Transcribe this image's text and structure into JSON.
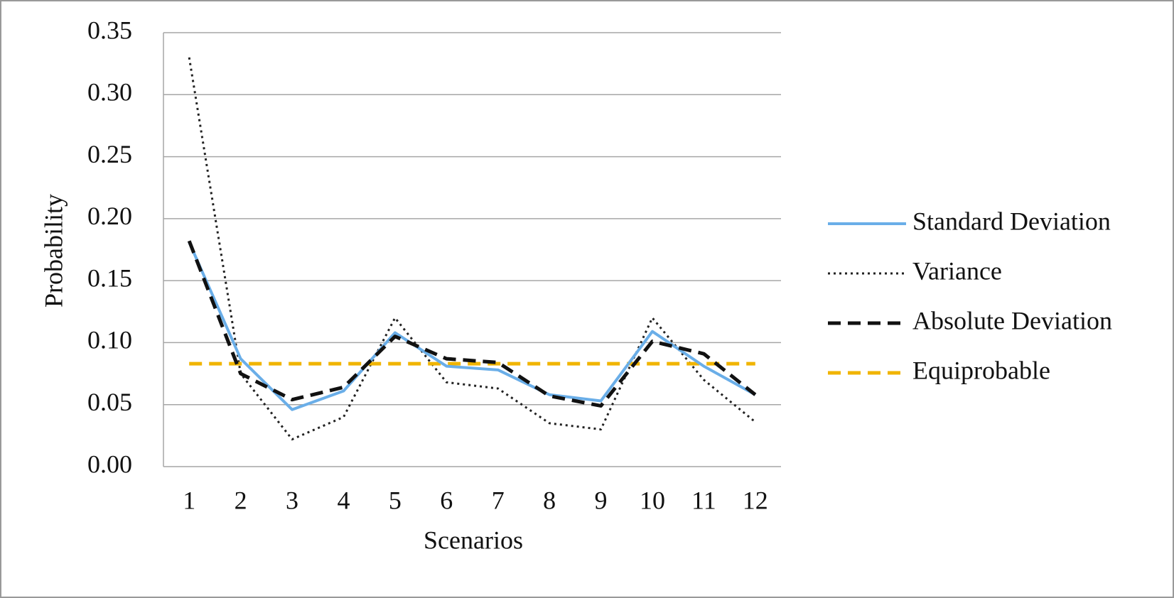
{
  "chart_data": {
    "type": "line",
    "x_label": "Scenarios",
    "y_label": "Probability",
    "categories": [
      "1",
      "2",
      "3",
      "4",
      "5",
      "6",
      "7",
      "8",
      "9",
      "10",
      "11",
      "12"
    ],
    "series": [
      {
        "name": "Standard Deviation",
        "color": "#6aaee8",
        "style": "solid",
        "values": [
          0.181,
          0.087,
          0.046,
          0.061,
          0.108,
          0.081,
          0.078,
          0.058,
          0.053,
          0.109,
          0.081,
          0.058
        ]
      },
      {
        "name": "Variance",
        "color": "#222222",
        "style": "dotted",
        "values": [
          0.33,
          0.075,
          0.022,
          0.04,
          0.12,
          0.068,
          0.063,
          0.035,
          0.03,
          0.12,
          0.07,
          0.036
        ]
      },
      {
        "name": "Absolute Deviation",
        "color": "#111111",
        "style": "dashed",
        "values": [
          0.182,
          0.075,
          0.054,
          0.064,
          0.105,
          0.087,
          0.084,
          0.057,
          0.049,
          0.101,
          0.091,
          0.058
        ]
      },
      {
        "name": "Equiprobable",
        "color": "#f0b400",
        "style": "dashed",
        "values": [
          0.083,
          0.083,
          0.083,
          0.083,
          0.083,
          0.083,
          0.083,
          0.083,
          0.083,
          0.083,
          0.083,
          0.083
        ]
      }
    ],
    "ylim": [
      0,
      0.35
    ],
    "yticks": [
      {
        "value": 0,
        "label": "0.00"
      },
      {
        "value": 0.05,
        "label": "0.05"
      },
      {
        "value": 0.1,
        "label": "0.10"
      },
      {
        "value": 0.15,
        "label": "0.15"
      },
      {
        "value": 0.2,
        "label": "0.20"
      },
      {
        "value": 0.25,
        "label": "0.25"
      },
      {
        "value": 0.3,
        "label": "0.30"
      },
      {
        "value": 0.35,
        "label": "0.35"
      }
    ],
    "grid": true,
    "legend": "right"
  }
}
